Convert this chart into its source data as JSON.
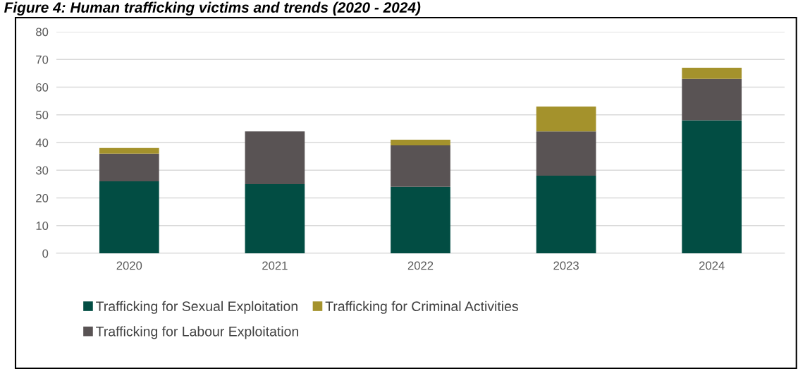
{
  "chart_data": {
    "type": "bar",
    "title": "Figure 4: Human trafficking victims and trends (2020 - 2024)",
    "categories": [
      "2020",
      "2021",
      "2022",
      "2023",
      "2024"
    ],
    "stacked": true,
    "series": [
      {
        "name": "Trafficking for Sexual Exploitation",
        "color": "#024d43",
        "values": [
          26,
          25,
          24,
          28,
          48
        ]
      },
      {
        "name": "Trafficking for Labour Exploitation",
        "color": "#595354",
        "values": [
          10,
          19,
          15,
          16,
          15
        ]
      },
      {
        "name": "Trafficking for Criminal Activities",
        "color": "#a4922c",
        "values": [
          2,
          0,
          2,
          9,
          4
        ]
      }
    ],
    "ylim": [
      0,
      80
    ],
    "yticks": [
      0,
      10,
      20,
      30,
      40,
      50,
      60,
      70,
      80
    ],
    "grid": "y",
    "legend": "bottom"
  }
}
